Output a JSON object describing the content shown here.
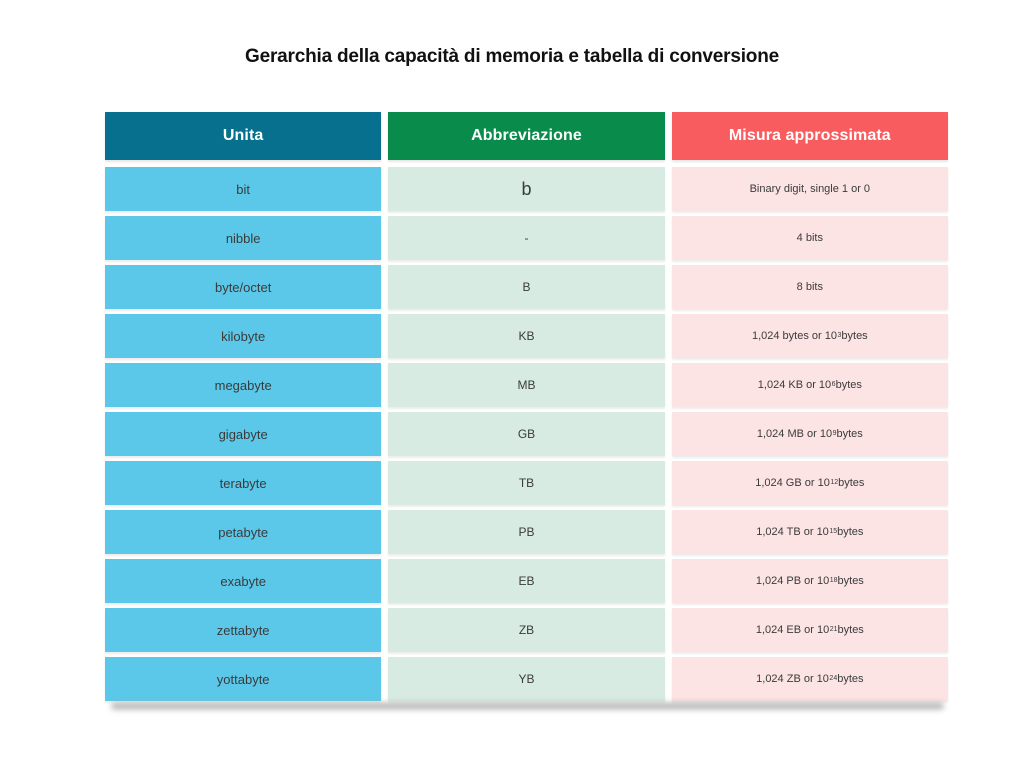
{
  "title": "Gerarchia della capacità di memoria e tabella di conversione",
  "colors": {
    "unit-header-bg": "#07708f",
    "unit-cell-bg": "#5bc8e9",
    "abbr-header-bg": "#098c4b",
    "abbr-cell-bg": "#d7ebe2",
    "measure-header-bg": "#f85c5e",
    "measure-cell-bg": "#fce3e4",
    "header-text": "#ffffff",
    "cell-text": "#3b3b3b",
    "title-text": "#111111",
    "shadow": "#9a9a9a"
  },
  "table": {
    "headers": [
      "Unita",
      "Abbreviazione",
      "Misura approssimata"
    ],
    "rows": [
      {
        "unit": "bit",
        "abbr": "b",
        "measure": {
          "text": "Binary digit, single 1 or 0",
          "sup": "",
          "tail": ""
        }
      },
      {
        "unit": "nibble",
        "abbr": "-",
        "measure": {
          "text": "4 bits",
          "sup": "",
          "tail": ""
        }
      },
      {
        "unit": "byte/octet",
        "abbr": "B",
        "measure": {
          "text": "8 bits",
          "sup": "",
          "tail": ""
        }
      },
      {
        "unit": "kilobyte",
        "abbr": "KB",
        "measure": {
          "text": "1,024 bytes or 10",
          "sup": "3",
          "tail": " bytes"
        }
      },
      {
        "unit": "megabyte",
        "abbr": "MB",
        "measure": {
          "text": "1,024 KB or 10",
          "sup": "6",
          "tail": " bytes"
        }
      },
      {
        "unit": "gigabyte",
        "abbr": "GB",
        "measure": {
          "text": "1,024 MB or 10",
          "sup": "9",
          "tail": " bytes"
        }
      },
      {
        "unit": "terabyte",
        "abbr": "TB",
        "measure": {
          "text": "1,024 GB or 10",
          "sup": "12",
          "tail": " bytes"
        }
      },
      {
        "unit": "petabyte",
        "abbr": "PB",
        "measure": {
          "text": "1,024 TB or 10",
          "sup": "15",
          "tail": " bytes"
        }
      },
      {
        "unit": "exabyte",
        "abbr": "EB",
        "measure": {
          "text": "1,024 PB or 10",
          "sup": "18",
          "tail": " bytes"
        }
      },
      {
        "unit": "zettabyte",
        "abbr": "ZB",
        "measure": {
          "text": "1,024 EB or 10",
          "sup": "21",
          "tail": " bytes"
        }
      },
      {
        "unit": "yottabyte",
        "abbr": "YB",
        "measure": {
          "text": "1,024 ZB or 10",
          "sup": "24",
          "tail": " bytes"
        }
      }
    ]
  },
  "chart_data": {
    "type": "table",
    "title": "Gerarchia della capacità di memoria e tabella di conversione",
    "columns": [
      "Unita",
      "Abbreviazione",
      "Misura approssimata"
    ],
    "rows": [
      [
        "bit",
        "b",
        "Binary digit, single 1 or 0"
      ],
      [
        "nibble",
        "-",
        "4 bits"
      ],
      [
        "byte/octet",
        "B",
        "8 bits"
      ],
      [
        "kilobyte",
        "KB",
        "1,024 bytes or 10^3 bytes"
      ],
      [
        "megabyte",
        "MB",
        "1,024 KB or 10^6 bytes"
      ],
      [
        "gigabyte",
        "GB",
        "1,024 MB or 10^9 bytes"
      ],
      [
        "terabyte",
        "TB",
        "1,024 GB or 10^12 bytes"
      ],
      [
        "petabyte",
        "PB",
        "1,024 TB or 10^15 bytes"
      ],
      [
        "exabyte",
        "EB",
        "1,024 PB or 10^18 bytes"
      ],
      [
        "zettabyte",
        "ZB",
        "1,024 EB or 10^21 bytes"
      ],
      [
        "yottabyte",
        "YB",
        "1,024 ZB or 10^24 bytes"
      ]
    ]
  }
}
